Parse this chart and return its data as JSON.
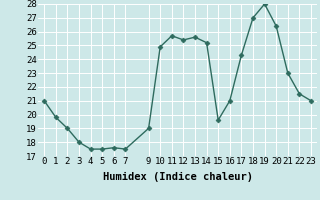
{
  "x": [
    0,
    1,
    2,
    3,
    4,
    5,
    6,
    7,
    9,
    10,
    11,
    12,
    13,
    14,
    15,
    16,
    17,
    18,
    19,
    20,
    21,
    22,
    23
  ],
  "y": [
    21,
    19.8,
    19,
    18,
    17.5,
    17.5,
    17.6,
    17.5,
    19,
    24.9,
    25.7,
    25.4,
    25.6,
    25.2,
    19.6,
    21,
    24.3,
    27,
    28,
    26.4,
    23,
    21.5,
    21
  ],
  "line_color": "#2e6b5e",
  "marker": "D",
  "marker_size": 2.5,
  "linewidth": 1.0,
  "xlabel": "Humidex (Indice chaleur)",
  "ylim": [
    17,
    28
  ],
  "xlim": [
    -0.5,
    23.5
  ],
  "yticks": [
    17,
    18,
    19,
    20,
    21,
    22,
    23,
    24,
    25,
    26,
    27,
    28
  ],
  "xticks": [
    0,
    1,
    2,
    3,
    4,
    5,
    6,
    7,
    9,
    10,
    11,
    12,
    13,
    14,
    15,
    16,
    17,
    18,
    19,
    20,
    21,
    22,
    23
  ],
  "xtick_labels": [
    "0",
    "1",
    "2",
    "3",
    "4",
    "5",
    "6",
    "7",
    "9",
    "10",
    "11",
    "12",
    "13",
    "14",
    "15",
    "16",
    "17",
    "18",
    "19",
    "20",
    "21",
    "22",
    "23"
  ],
  "bg_color": "#cde8e8",
  "grid_color": "#b0d0d0",
  "xlabel_fontsize": 7.5,
  "tick_fontsize": 6.5
}
